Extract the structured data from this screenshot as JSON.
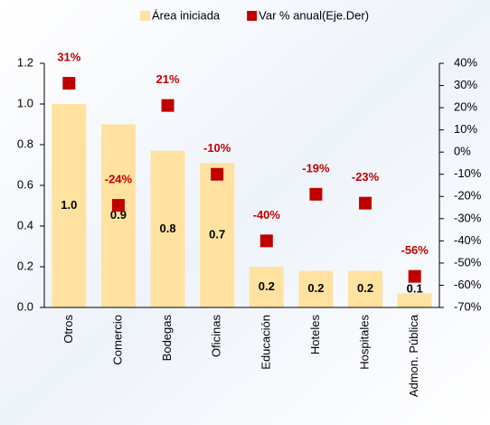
{
  "chart_data": {
    "type": "bar",
    "categories": [
      "Otros",
      "Comercio",
      "Bodegas",
      "Oficinas",
      "Educación",
      "Hoteles",
      "Hospitales",
      "Admon. Pública"
    ],
    "series": [
      {
        "name": "Área iniciada",
        "type": "bar",
        "color": "#ffe2a0",
        "values": [
          1.0,
          0.9,
          0.77,
          0.71,
          0.2,
          0.18,
          0.18,
          0.07
        ],
        "value_labels": [
          "1.0",
          "0.9",
          "0.8",
          "0.7",
          "0.2",
          "0.2",
          "0.2",
          "0.1"
        ]
      },
      {
        "name": "Var % anual(Eje.Der)",
        "type": "scatter",
        "axis": "y2",
        "color": "#c00000",
        "values": [
          31,
          -24,
          21,
          -10,
          -40,
          -19,
          -23,
          -56
        ],
        "value_labels": [
          "31%",
          "-24%",
          "21%",
          "-10%",
          "-40%",
          "-19%",
          "-23%",
          "-56%"
        ]
      }
    ],
    "ylim": [
      0,
      1.2
    ],
    "yticks": [
      {
        "value": 0,
        "label": "0.0"
      },
      0.2,
      0.4,
      0.6,
      0.8,
      {
        "value": 1,
        "label": "1.0"
      },
      1.2
    ],
    "y2lim": [
      -70,
      40
    ],
    "y2ticks": [
      {
        "value": -70,
        "label": "-70%"
      },
      {
        "value": -60,
        "label": "-60%"
      },
      {
        "value": -50,
        "label": "-50%"
      },
      {
        "value": -40,
        "label": "-40%"
      },
      {
        "value": -30,
        "label": "-30%"
      },
      {
        "value": -20,
        "label": "-20%"
      },
      {
        "value": -10,
        "label": "-10%"
      },
      {
        "value": 0,
        "label": "0%"
      },
      {
        "value": 10,
        "label": "10%"
      },
      {
        "value": 20,
        "label": "20%"
      },
      {
        "value": 30,
        "label": "30%"
      },
      {
        "value": 40,
        "label": "40%"
      }
    ],
    "legend": "top"
  }
}
